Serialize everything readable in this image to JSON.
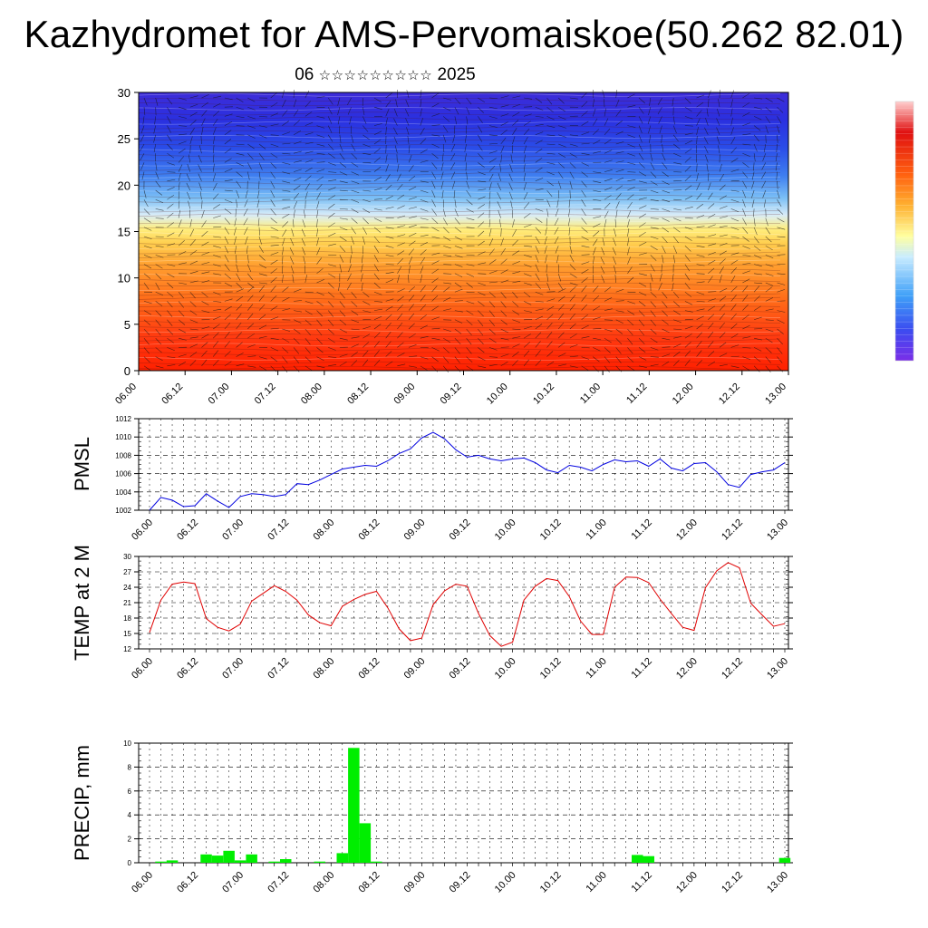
{
  "title": "Kazhydromet for AMS-Pervomaiskoe(50.262 82.01)",
  "subtitle": {
    "day": "06",
    "month_glyphs": "☆☆☆☆☆☆☆☆☆",
    "year": "2025"
  },
  "time_labels": [
    "06.00",
    "06.12",
    "07.00",
    "07.12",
    "08.00",
    "08.12",
    "09.00",
    "09.12",
    "10.00",
    "10.12",
    "11.00",
    "11.12",
    "12.00",
    "12.12",
    "13.00"
  ],
  "chart_data": [
    {
      "type": "heatmap",
      "name": "temperature cross-section with wind vectors",
      "x_labels_ref": "time_labels",
      "ylim": [
        0,
        30
      ],
      "yticks": [
        0,
        5,
        10,
        15,
        20,
        25,
        30
      ],
      "colorbar": [
        "#7a2ee8",
        "#3b56f0",
        "#4fa0f7",
        "#bfe6ff",
        "#ffff99",
        "#ffb732",
        "#ff6a10",
        "#e81010",
        "#ffcccc"
      ]
    },
    {
      "type": "line",
      "ylabel": "PMSL",
      "ylim": [
        1002,
        1012
      ],
      "yticks": [
        1002,
        1004,
        1006,
        1008,
        1010,
        1012
      ],
      "color": "#0000e0",
      "values": [
        1002.0,
        1003.4,
        1003.1,
        1002.4,
        1002.5,
        1003.8,
        1003.0,
        1002.3,
        1003.5,
        1003.8,
        1003.7,
        1003.5,
        1003.7,
        1004.9,
        1004.8,
        1005.3,
        1005.9,
        1006.5,
        1006.7,
        1006.9,
        1006.8,
        1007.4,
        1008.2,
        1008.7,
        1009.9,
        1010.5,
        1009.8,
        1008.6,
        1007.8,
        1008.0,
        1007.6,
        1007.4,
        1007.6,
        1007.7,
        1007.2,
        1006.4,
        1006.1,
        1006.9,
        1006.7,
        1006.3,
        1007.0,
        1007.5,
        1007.3,
        1007.4,
        1006.8,
        1007.6,
        1006.6,
        1006.3,
        1007.1,
        1007.2,
        1006.2,
        1004.8,
        1004.5,
        1005.9,
        1006.2,
        1006.4,
        1007.2
      ]
    },
    {
      "type": "line",
      "ylabel": "TEMP at 2 M",
      "ylim": [
        12,
        30
      ],
      "yticks": [
        12,
        15,
        18,
        21,
        24,
        27,
        30
      ],
      "color": "#e00000",
      "values": [
        15.2,
        21.5,
        24.6,
        25.0,
        24.7,
        17.9,
        16.2,
        15.5,
        16.8,
        21.3,
        22.8,
        24.3,
        23.2,
        21.5,
        18.6,
        17.1,
        16.5,
        20.3,
        21.6,
        22.6,
        23.2,
        20.0,
        15.9,
        13.6,
        14.1,
        20.6,
        23.3,
        24.6,
        24.2,
        18.9,
        14.6,
        12.5,
        13.3,
        21.5,
        24.2,
        25.7,
        25.3,
        22.2,
        17.4,
        14.8,
        14.8,
        24.0,
        26.0,
        25.9,
        24.9,
        21.7,
        18.9,
        16.2,
        15.6,
        23.9,
        27.2,
        28.8,
        27.8,
        20.9,
        18.6,
        16.4,
        16.9
      ]
    },
    {
      "type": "bar",
      "ylabel": "PRECIP, mm",
      "ylim": [
        0,
        10
      ],
      "yticks": [
        0,
        2,
        4,
        6,
        8,
        10
      ],
      "color": "#00ee00",
      "values": [
        0,
        0.1,
        0.2,
        0,
        0,
        0.7,
        0.6,
        1.0,
        0.2,
        0.7,
        0,
        0.1,
        0.3,
        0,
        0,
        0.1,
        0,
        0.8,
        9.6,
        3.3,
        0.1,
        0,
        0,
        0,
        0,
        0,
        0,
        0,
        0,
        0,
        0,
        0,
        0,
        0,
        0,
        0,
        0,
        0,
        0,
        0,
        0,
        0,
        0,
        0.65,
        0.55,
        0,
        0,
        0,
        0,
        0,
        0,
        0,
        0,
        0,
        0,
        0,
        0.4
      ]
    }
  ]
}
